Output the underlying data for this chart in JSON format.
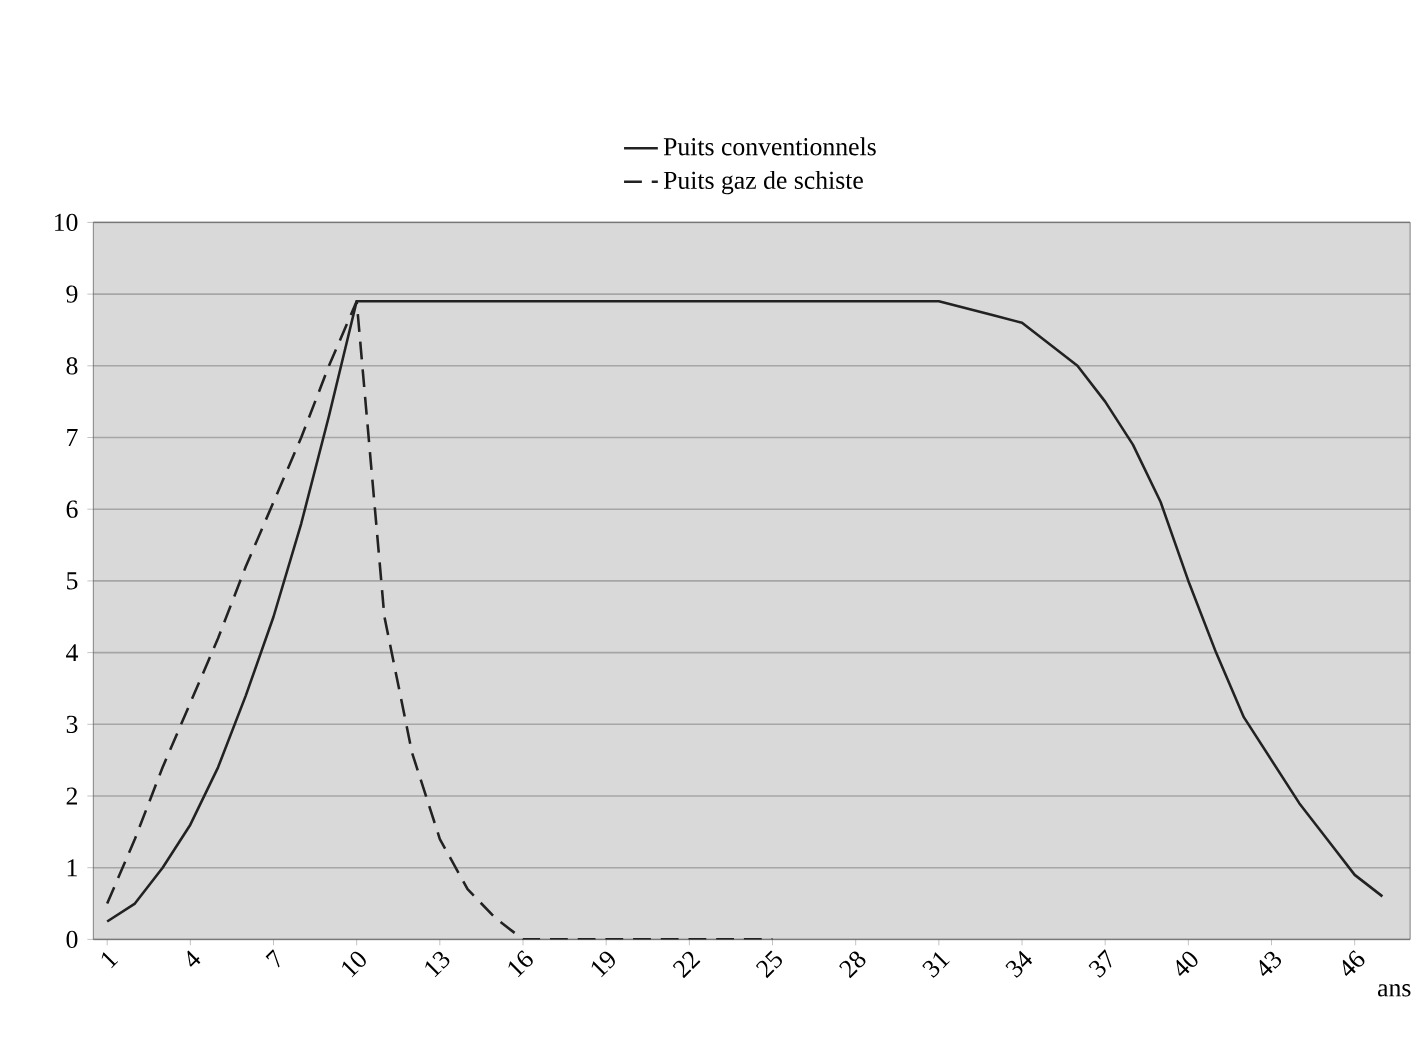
{
  "chart_data": {
    "type": "line",
    "xlabel": "ans",
    "x": [
      1,
      2,
      3,
      4,
      5,
      6,
      7,
      8,
      9,
      10,
      11,
      12,
      13,
      14,
      15,
      16,
      17,
      18,
      19,
      20,
      21,
      22,
      23,
      24,
      25,
      26,
      27,
      28,
      29,
      30,
      31,
      32,
      33,
      34,
      35,
      36,
      37,
      38,
      39,
      40,
      41,
      42,
      43,
      44,
      45,
      46,
      47
    ],
    "series": [
      {
        "name": "Puits conventionnels",
        "color": "#222222",
        "line_style": "solid",
        "values": [
          0.25,
          0.5,
          1.0,
          1.6,
          2.4,
          3.4,
          4.5,
          5.8,
          7.3,
          8.9,
          8.9,
          8.9,
          8.9,
          8.9,
          8.9,
          8.9,
          8.9,
          8.9,
          8.9,
          8.9,
          8.9,
          8.9,
          8.9,
          8.9,
          8.9,
          8.9,
          8.9,
          8.9,
          8.9,
          8.9,
          8.9,
          8.8,
          8.7,
          8.6,
          8.3,
          8.0,
          7.5,
          6.9,
          6.1,
          5.0,
          4.0,
          3.1,
          2.5,
          1.9,
          1.4,
          0.9,
          0.6
        ]
      },
      {
        "name": "Puits gaz de schiste",
        "color": "#222222",
        "line_style": "dashed",
        "values": [
          0.5,
          1.4,
          2.4,
          3.3,
          4.2,
          5.2,
          6.1,
          7.0,
          8.0,
          8.9,
          4.5,
          2.6,
          1.4,
          0.7,
          0.3,
          0,
          0,
          0,
          0,
          0,
          0,
          0,
          0,
          0,
          0,
          null,
          null,
          null,
          null,
          null,
          null,
          null,
          null,
          null,
          null,
          null,
          null,
          null,
          null,
          null,
          null,
          null,
          null,
          null,
          null,
          null,
          null
        ]
      }
    ],
    "xlim": [
      0.5,
      48
    ],
    "xticks": [
      1,
      4,
      7,
      10,
      13,
      16,
      19,
      22,
      25,
      28,
      31,
      34,
      37,
      40,
      43,
      46
    ],
    "ylim": [
      0,
      10
    ],
    "yticks": [
      0,
      1,
      2,
      3,
      4,
      5,
      6,
      7,
      8,
      9,
      10
    ],
    "grid": "y",
    "legend": "top",
    "marker": "none"
  }
}
